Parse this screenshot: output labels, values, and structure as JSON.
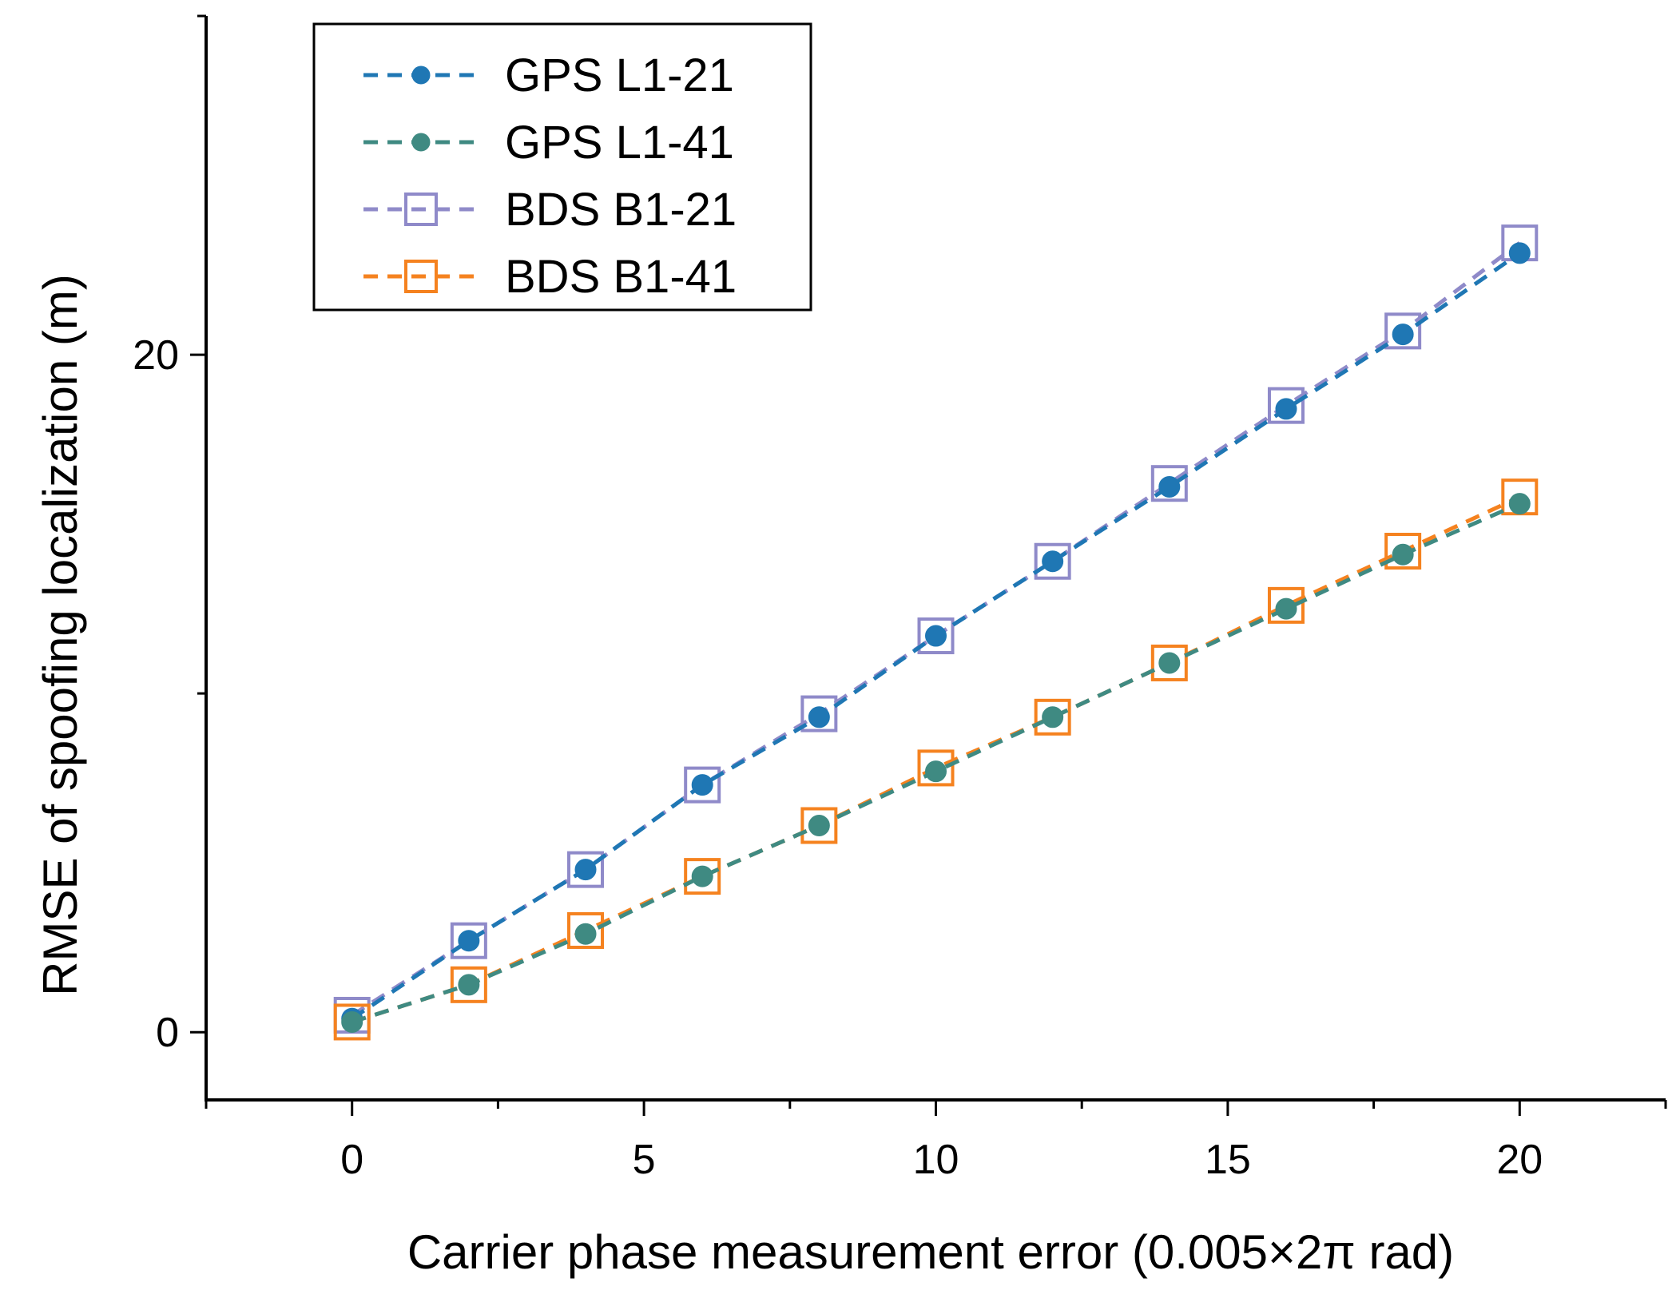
{
  "chart_data": {
    "type": "line",
    "title": "",
    "xlabel": "Carrier phase measurement error (0.005×2π rad)",
    "ylabel": "RMSE of spoofing localization (m)",
    "xlim": [
      -2.5,
      22.5
    ],
    "ylim": [
      -2,
      30
    ],
    "x_ticks": [
      0,
      5,
      10,
      15,
      20
    ],
    "x_tick_labels": [
      "0",
      "5",
      "10",
      "15",
      "20"
    ],
    "y_ticks": [
      0,
      20
    ],
    "y_tick_labels": [
      "0",
      "20"
    ],
    "grid": false,
    "legend_position": "top-left",
    "x": [
      0,
      2,
      4,
      6,
      8,
      10,
      12,
      14,
      16,
      18,
      20
    ],
    "series": [
      {
        "name": "GPS L1-21",
        "color": "#1f77b4",
        "marker": "filled-circle",
        "values": [
          0.4,
          2.7,
          4.8,
          7.3,
          9.3,
          11.7,
          13.9,
          16.1,
          18.4,
          20.6,
          23.0
        ]
      },
      {
        "name": "GPS L1-41",
        "color": "#3f8a82",
        "marker": "filled-circle",
        "values": [
          0.3,
          1.4,
          2.9,
          4.6,
          6.1,
          7.7,
          9.3,
          10.9,
          12.5,
          14.1,
          15.6
        ]
      },
      {
        "name": "BDS B1-21",
        "color": "#8f8ac9",
        "marker": "open-square",
        "values": [
          0.5,
          2.7,
          4.8,
          7.3,
          9.4,
          11.7,
          13.9,
          16.2,
          18.5,
          20.7,
          23.3
        ]
      },
      {
        "name": "BDS B1-41",
        "color": "#f5821f",
        "marker": "open-square",
        "values": [
          0.3,
          1.4,
          3.0,
          4.6,
          6.1,
          7.8,
          9.3,
          10.9,
          12.6,
          14.2,
          15.8
        ]
      }
    ]
  }
}
